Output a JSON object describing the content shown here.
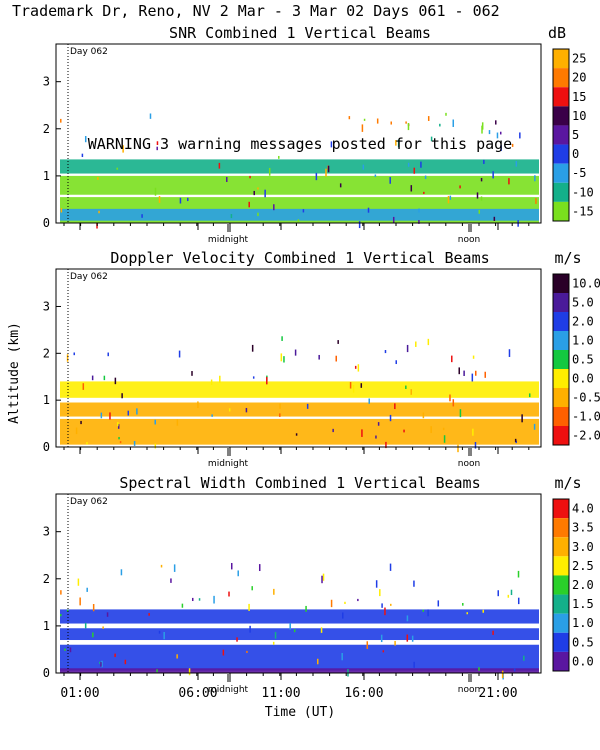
{
  "header": {
    "title": "Trademark Dr, Reno, NV   2 Mar -  3 Mar 02 Days 061 - 062"
  },
  "warning": "WARNING  3 warning messages posted for this page",
  "shared": {
    "ylabel": "Altitude (km)",
    "xlabel": "Time (UT)",
    "day_marker": "Day 062",
    "x_ticks": [
      "01:00",
      "06:00",
      "11:00",
      "16:00",
      "21:00"
    ],
    "midnight_label": "midnight",
    "noon_label": "noon"
  },
  "chart_data": [
    {
      "type": "heatmap",
      "title": "SNR Combined 1 Vertical Beams",
      "unit": "dB",
      "xlabel": "Time (UT)",
      "ylabel": "Altitude (km)",
      "ylim": [
        0,
        3.8
      ],
      "y_ticks": [
        "0",
        "1",
        "2",
        "3"
      ],
      "colorbar": {
        "labels": [
          "25",
          "20",
          "15",
          "10",
          "5",
          "0",
          "-5",
          "-10",
          "-15"
        ],
        "colors": [
          "#ffb000",
          "#ff7a00",
          "#ee1010",
          "#3a0048",
          "#5a16a0",
          "#1f3de6",
          "#2a9fe6",
          "#14b08a",
          "#7ae01e"
        ]
      },
      "layers": [
        {
          "band": [
            0.0,
            0.55
          ],
          "color": "#7ae01e"
        },
        {
          "band": [
            0.6,
            1.0
          ],
          "color": "#7ae01e"
        },
        {
          "band": [
            1.05,
            1.35
          ],
          "color": "#14b08a"
        },
        {
          "band": [
            0.05,
            0.3
          ],
          "color": "#2a9fe6"
        }
      ]
    },
    {
      "type": "heatmap",
      "title": "Doppler Velocity Combined 1 Vertical Beams",
      "unit": "m/s",
      "xlabel": "Time (UT)",
      "ylabel": "Altitude (km)",
      "ylim": [
        0,
        3.8
      ],
      "y_ticks": [
        "0",
        "1",
        "2",
        "3"
      ],
      "colorbar": {
        "labels": [
          "10.0",
          "5.0",
          "2.0",
          "1.0",
          "0.5",
          "0.0",
          "-0.5",
          "-1.0",
          "-2.0"
        ],
        "colors": [
          "#2a0028",
          "#4a1a9a",
          "#1f3de6",
          "#2a9fe6",
          "#14c840",
          "#ffee00",
          "#ffb000",
          "#ff6000",
          "#ee1010"
        ]
      },
      "layers": [
        {
          "band": [
            0.05,
            0.6
          ],
          "color": "#ffb000"
        },
        {
          "band": [
            0.65,
            0.95
          ],
          "color": "#ffb000"
        },
        {
          "band": [
            1.05,
            1.4
          ],
          "color": "#ffee00"
        }
      ]
    },
    {
      "type": "heatmap",
      "title": "Spectral Width Combined 1 Vertical Beams",
      "unit": "m/s",
      "xlabel": "Time (UT)",
      "ylabel": "Altitude (km)",
      "ylim": [
        0,
        3.8
      ],
      "y_ticks": [
        "0",
        "1",
        "2",
        "3"
      ],
      "colorbar": {
        "labels": [
          "4.0",
          "3.5",
          "3.0",
          "2.5",
          "2.0",
          "1.5",
          "1.0",
          "0.5",
          "0.0"
        ],
        "colors": [
          "#ee1010",
          "#ff7a00",
          "#ffb000",
          "#ffee00",
          "#2ad02a",
          "#14b08a",
          "#2a9fe6",
          "#1f3de6",
          "#5a16a0"
        ]
      },
      "layers": [
        {
          "band": [
            0.05,
            0.6
          ],
          "color": "#1f3de6"
        },
        {
          "band": [
            0.7,
            0.95
          ],
          "color": "#1f3de6"
        },
        {
          "band": [
            1.05,
            1.35
          ],
          "color": "#1f3de6"
        },
        {
          "band": [
            0.0,
            0.1
          ],
          "color": "#5a16a0"
        }
      ]
    }
  ]
}
